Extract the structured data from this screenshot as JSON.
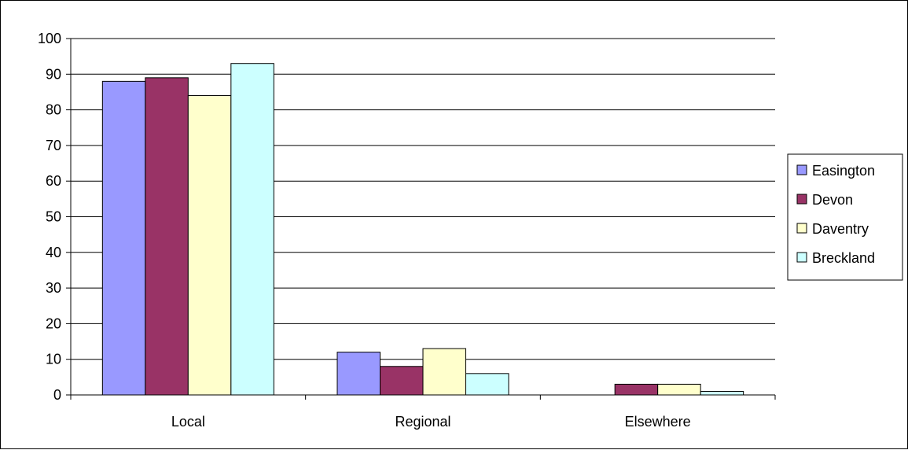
{
  "chart_data": {
    "type": "bar",
    "categories": [
      "Local",
      "Regional",
      "Elsewhere"
    ],
    "series": [
      {
        "name": "Easington",
        "values": [
          88,
          12,
          0
        ],
        "color": "#9999FF"
      },
      {
        "name": "Devon",
        "values": [
          89,
          8,
          3
        ],
        "color": "#993366"
      },
      {
        "name": "Daventry",
        "values": [
          84,
          13,
          3
        ],
        "color": "#FFFFCC"
      },
      {
        "name": "Breckland",
        "values": [
          93,
          6,
          1
        ],
        "color": "#CCFFFF"
      }
    ],
    "title": "",
    "xlabel": "",
    "ylabel": "",
    "ylim": [
      0,
      100
    ],
    "yticks": [
      0,
      10,
      20,
      30,
      40,
      50,
      60,
      70,
      80,
      90,
      100
    ],
    "grid": true,
    "legend_position": "right"
  }
}
